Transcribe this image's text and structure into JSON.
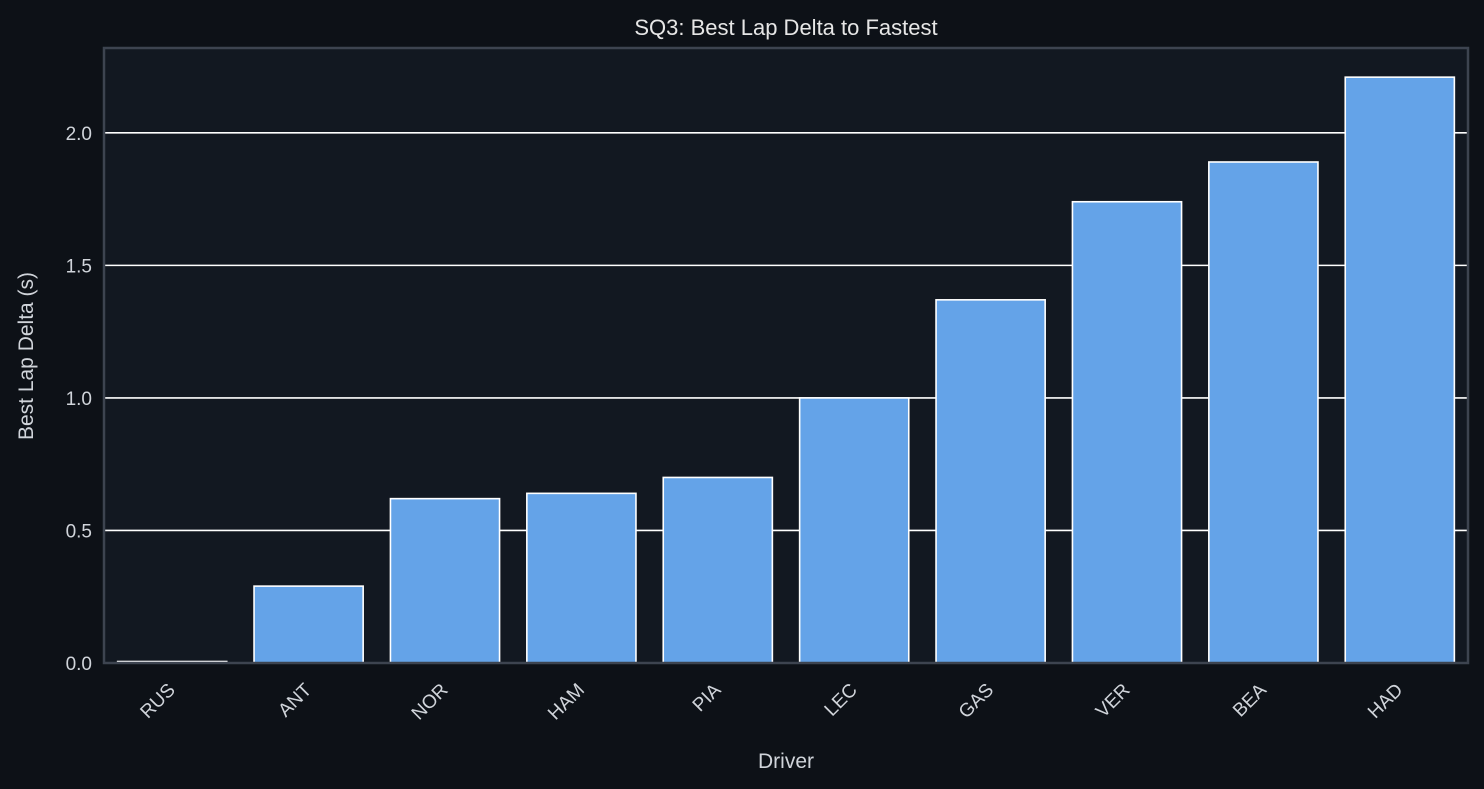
{
  "chart_data": {
    "type": "bar",
    "title": "SQ3: Best Lap Delta to Fastest",
    "xlabel": "Driver",
    "ylabel": "Best Lap Delta (s)",
    "categories": [
      "RUS",
      "ANT",
      "NOR",
      "HAM",
      "PIA",
      "LEC",
      "GAS",
      "VER",
      "BEA",
      "HAD"
    ],
    "values": [
      0.0,
      0.29,
      0.62,
      0.64,
      0.7,
      1.0,
      1.37,
      1.74,
      1.89,
      2.21
    ],
    "ylim": [
      0,
      2.32
    ],
    "yticks": [
      "0.0",
      "0.5",
      "1.0",
      "1.5",
      "2.0"
    ],
    "grid": true,
    "colors": {
      "bar": "#64a3e8",
      "plot_background": "#121821",
      "page_background": "#0d1117",
      "grid": "#ffffff",
      "frame": "#3d4450"
    }
  }
}
